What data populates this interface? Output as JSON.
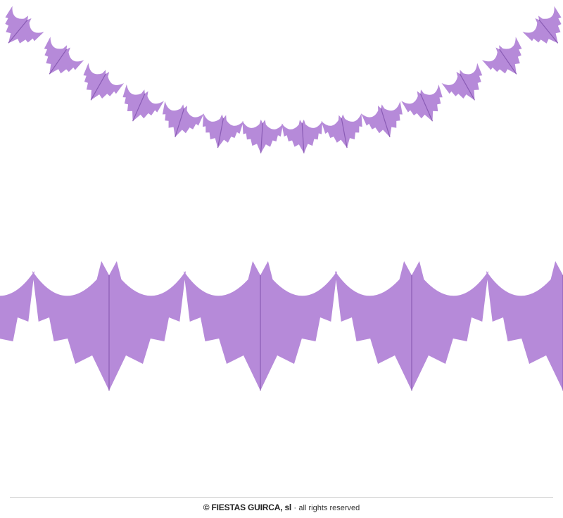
{
  "product": {
    "description_colors": {
      "paper": "#b68ad9",
      "edge": "#9466bf",
      "fold": "#8a5cb5"
    },
    "garland_small_count": 14,
    "garland_large_count": 5
  },
  "footer": {
    "brand": "© FIESTAS GUIRCA, sl",
    "separator": "·",
    "rights": "all rights reserved"
  }
}
